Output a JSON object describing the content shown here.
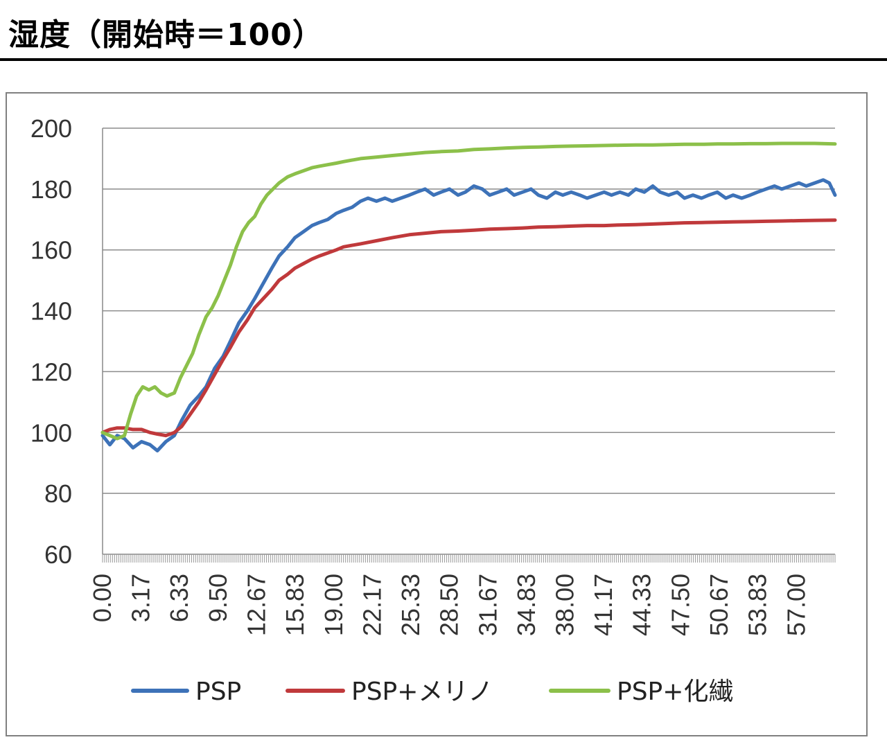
{
  "heading": "湿度（開始時＝100）",
  "chart_data": {
    "type": "line",
    "title": "",
    "xlabel": "",
    "ylabel": "",
    "ylim": [
      60,
      200
    ],
    "yticks": [
      60,
      80,
      100,
      120,
      140,
      160,
      180,
      200
    ],
    "grid": true,
    "legend_position": "bottom",
    "x_tick_labels": [
      "0.00",
      "3.17",
      "6.33",
      "9.50",
      "12.67",
      "15.83",
      "19.00",
      "22.17",
      "25.33",
      "28.50",
      "31.67",
      "34.83",
      "38.00",
      "41.17",
      "44.33",
      "47.50",
      "50.67",
      "53.83",
      "57.00"
    ],
    "xlim": [
      0,
      60.17
    ],
    "series": [
      {
        "name": "PSP",
        "color": "#3d72b8",
        "points": [
          [
            0,
            99
          ],
          [
            0.6,
            96
          ],
          [
            1.2,
            99
          ],
          [
            1.8,
            98
          ],
          [
            2.5,
            95
          ],
          [
            3.2,
            97
          ],
          [
            3.9,
            96
          ],
          [
            4.5,
            94
          ],
          [
            5.2,
            97
          ],
          [
            5.9,
            99
          ],
          [
            6.5,
            104
          ],
          [
            7.2,
            109
          ],
          [
            7.9,
            112
          ],
          [
            8.5,
            115
          ],
          [
            9.2,
            121
          ],
          [
            9.9,
            125
          ],
          [
            10.5,
            130
          ],
          [
            11.2,
            136
          ],
          [
            11.9,
            140
          ],
          [
            12.5,
            144
          ],
          [
            13.2,
            149
          ],
          [
            13.9,
            154
          ],
          [
            14.5,
            158
          ],
          [
            15.2,
            161
          ],
          [
            15.8,
            164
          ],
          [
            16.5,
            166
          ],
          [
            17.2,
            168
          ],
          [
            17.8,
            169
          ],
          [
            18.5,
            170
          ],
          [
            19.2,
            172
          ],
          [
            19.8,
            173
          ],
          [
            20.5,
            174
          ],
          [
            21.2,
            176
          ],
          [
            21.8,
            177
          ],
          [
            22.5,
            176
          ],
          [
            23.2,
            177
          ],
          [
            23.8,
            176
          ],
          [
            24.5,
            177
          ],
          [
            25.2,
            178
          ],
          [
            25.8,
            179
          ],
          [
            26.5,
            180
          ],
          [
            27.2,
            178
          ],
          [
            27.8,
            179
          ],
          [
            28.5,
            180
          ],
          [
            29.2,
            178
          ],
          [
            29.8,
            179
          ],
          [
            30.5,
            181
          ],
          [
            31.2,
            180
          ],
          [
            31.8,
            178
          ],
          [
            32.5,
            179
          ],
          [
            33.2,
            180
          ],
          [
            33.8,
            178
          ],
          [
            34.5,
            179
          ],
          [
            35.2,
            180
          ],
          [
            35.8,
            178
          ],
          [
            36.5,
            177
          ],
          [
            37.2,
            179
          ],
          [
            37.8,
            178
          ],
          [
            38.5,
            179
          ],
          [
            39.2,
            178
          ],
          [
            39.8,
            177
          ],
          [
            40.5,
            178
          ],
          [
            41.2,
            179
          ],
          [
            41.8,
            178
          ],
          [
            42.5,
            179
          ],
          [
            43.2,
            178
          ],
          [
            43.8,
            180
          ],
          [
            44.5,
            179
          ],
          [
            45.2,
            181
          ],
          [
            45.8,
            179
          ],
          [
            46.5,
            178
          ],
          [
            47.2,
            179
          ],
          [
            47.8,
            177
          ],
          [
            48.5,
            178
          ],
          [
            49.2,
            177
          ],
          [
            49.8,
            178
          ],
          [
            50.5,
            179
          ],
          [
            51.2,
            177
          ],
          [
            51.8,
            178
          ],
          [
            52.5,
            177
          ],
          [
            53.2,
            178
          ],
          [
            53.8,
            179
          ],
          [
            54.5,
            180
          ],
          [
            55.2,
            181
          ],
          [
            55.8,
            180
          ],
          [
            56.5,
            181
          ],
          [
            57.2,
            182
          ],
          [
            57.8,
            181
          ],
          [
            58.5,
            182
          ],
          [
            59.2,
            183
          ],
          [
            59.7,
            182
          ],
          [
            60.17,
            178
          ]
        ]
      },
      {
        "name": "PSP+メリノ",
        "color": "#c0393b",
        "points": [
          [
            0,
            100
          ],
          [
            0.6,
            101
          ],
          [
            1.2,
            101.5
          ],
          [
            1.8,
            101.5
          ],
          [
            2.5,
            101
          ],
          [
            3.2,
            101
          ],
          [
            3.9,
            100
          ],
          [
            4.5,
            99.5
          ],
          [
            5.2,
            99
          ],
          [
            5.9,
            100
          ],
          [
            6.5,
            102
          ],
          [
            7.2,
            106
          ],
          [
            7.9,
            110
          ],
          [
            8.5,
            114
          ],
          [
            9.2,
            119
          ],
          [
            9.9,
            124
          ],
          [
            10.5,
            128
          ],
          [
            11.2,
            133
          ],
          [
            11.9,
            137
          ],
          [
            12.5,
            141
          ],
          [
            13.2,
            144
          ],
          [
            13.9,
            147
          ],
          [
            14.5,
            150
          ],
          [
            15.2,
            152
          ],
          [
            15.8,
            154
          ],
          [
            16.5,
            155.5
          ],
          [
            17.2,
            157
          ],
          [
            17.8,
            158
          ],
          [
            18.5,
            159
          ],
          [
            19.2,
            160
          ],
          [
            19.8,
            161
          ],
          [
            20.5,
            161.5
          ],
          [
            21.2,
            162
          ],
          [
            22.5,
            163
          ],
          [
            23.8,
            164
          ],
          [
            25.2,
            165
          ],
          [
            26.5,
            165.5
          ],
          [
            27.8,
            166
          ],
          [
            29.2,
            166.2
          ],
          [
            30.5,
            166.5
          ],
          [
            31.8,
            166.8
          ],
          [
            33.2,
            167
          ],
          [
            34.5,
            167.2
          ],
          [
            35.8,
            167.5
          ],
          [
            37.2,
            167.6
          ],
          [
            38.5,
            167.8
          ],
          [
            39.8,
            168
          ],
          [
            41.2,
            168
          ],
          [
            42.5,
            168.2
          ],
          [
            43.8,
            168.3
          ],
          [
            45.2,
            168.5
          ],
          [
            46.5,
            168.7
          ],
          [
            47.8,
            168.9
          ],
          [
            49.2,
            169
          ],
          [
            50.5,
            169.1
          ],
          [
            51.8,
            169.2
          ],
          [
            53.2,
            169.3
          ],
          [
            54.5,
            169.4
          ],
          [
            55.8,
            169.5
          ],
          [
            57.2,
            169.6
          ],
          [
            58.5,
            169.7
          ],
          [
            60.17,
            169.8
          ]
        ]
      },
      {
        "name": "PSP+化繊",
        "color": "#8cc04a",
        "points": [
          [
            0,
            100
          ],
          [
            0.6,
            99
          ],
          [
            1.2,
            98
          ],
          [
            1.8,
            99
          ],
          [
            2.3,
            106
          ],
          [
            2.8,
            112
          ],
          [
            3.3,
            115
          ],
          [
            3.8,
            114
          ],
          [
            4.3,
            115
          ],
          [
            4.8,
            113
          ],
          [
            5.3,
            112
          ],
          [
            5.9,
            113
          ],
          [
            6.4,
            118
          ],
          [
            6.9,
            122
          ],
          [
            7.4,
            126
          ],
          [
            7.9,
            132
          ],
          [
            8.5,
            138
          ],
          [
            9.0,
            141
          ],
          [
            9.5,
            145
          ],
          [
            10.0,
            150
          ],
          [
            10.5,
            155
          ],
          [
            11.0,
            161
          ],
          [
            11.5,
            166
          ],
          [
            12.0,
            169
          ],
          [
            12.5,
            171
          ],
          [
            13.0,
            175
          ],
          [
            13.5,
            178
          ],
          [
            14.0,
            180
          ],
          [
            14.5,
            182
          ],
          [
            15.2,
            184
          ],
          [
            15.8,
            185
          ],
          [
            16.5,
            186
          ],
          [
            17.2,
            187
          ],
          [
            17.8,
            187.5
          ],
          [
            18.5,
            188
          ],
          [
            19.2,
            188.5
          ],
          [
            19.8,
            189
          ],
          [
            20.5,
            189.5
          ],
          [
            21.2,
            190
          ],
          [
            22.5,
            190.5
          ],
          [
            23.8,
            191
          ],
          [
            25.2,
            191.5
          ],
          [
            26.5,
            192
          ],
          [
            27.8,
            192.3
          ],
          [
            29.2,
            192.5
          ],
          [
            30.5,
            193
          ],
          [
            31.8,
            193.2
          ],
          [
            33.2,
            193.5
          ],
          [
            34.5,
            193.7
          ],
          [
            35.8,
            193.8
          ],
          [
            37.2,
            194
          ],
          [
            38.5,
            194.1
          ],
          [
            39.8,
            194.2
          ],
          [
            41.2,
            194.3
          ],
          [
            42.5,
            194.4
          ],
          [
            43.8,
            194.5
          ],
          [
            45.2,
            194.5
          ],
          [
            46.5,
            194.6
          ],
          [
            47.8,
            194.7
          ],
          [
            49.2,
            194.7
          ],
          [
            50.5,
            194.8
          ],
          [
            51.8,
            194.8
          ],
          [
            53.2,
            194.9
          ],
          [
            54.5,
            194.9
          ],
          [
            55.8,
            195
          ],
          [
            57.2,
            195
          ],
          [
            58.5,
            195
          ],
          [
            60.17,
            194.8
          ]
        ]
      }
    ]
  }
}
